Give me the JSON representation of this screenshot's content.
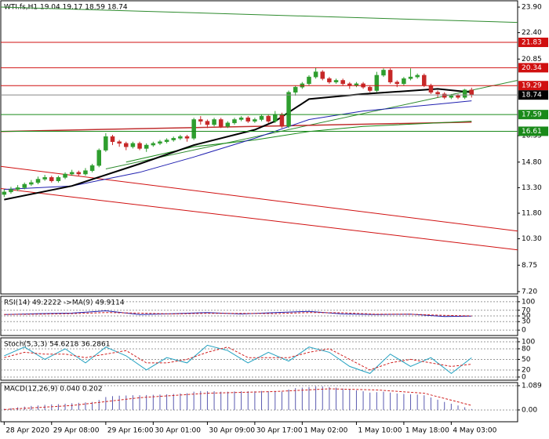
{
  "chart_data": [
    {
      "type": "candlestick",
      "title": "WTI.fs,H1  19.04 19.17 18.59 18.74",
      "xlim": [
        -0.5,
        75.8
      ],
      "ylim": [
        7.06,
        24.27
      ],
      "yticks": [
        {
          "value": 23.9,
          "label": "23.90"
        },
        {
          "value": 22.4,
          "label": "22.40"
        },
        20.85,
        16.35,
        {
          "value": 14.8,
          "label": "14.80"
        },
        {
          "value": 13.3,
          "label": "13.30"
        },
        {
          "value": 11.8,
          "label": "11.80"
        },
        {
          "value": 10.3,
          "label": "10.30"
        },
        8.75,
        {
          "value": 7.2,
          "label": "7.20"
        }
      ],
      "up_color": "#2e9e2e",
      "down_color": "#c62828",
      "open": [
        12.9,
        13.05,
        13.2,
        13.3,
        13.5,
        13.6,
        13.8,
        13.9,
        13.7,
        13.9,
        14.1,
        14.2,
        14.1,
        14.3,
        14.6,
        15.5,
        16.3,
        16.0,
        15.9,
        15.7,
        15.9,
        15.6,
        15.8,
        15.9,
        16.0,
        16.1,
        16.2,
        16.3,
        16.2,
        17.3,
        17.2,
        17.0,
        17.3,
        16.9,
        17.1,
        17.3,
        17.4,
        17.2,
        17.3,
        17.5,
        17.2,
        17.6,
        16.9,
        18.9,
        19.2,
        19.4,
        19.8,
        20.1,
        19.7,
        19.5,
        19.6,
        19.4,
        19.3,
        19.4,
        19.2,
        19.0,
        19.9,
        20.2,
        19.5,
        19.4,
        19.7,
        19.8,
        19.9,
        19.3,
        18.9,
        18.8,
        18.6,
        18.7,
        18.6,
        19.04
      ],
      "high": [
        13.2,
        13.35,
        13.45,
        13.6,
        13.75,
        13.95,
        14.05,
        14.0,
        14.0,
        14.2,
        14.35,
        14.3,
        14.45,
        14.7,
        15.6,
        16.5,
        16.4,
        16.1,
        16.0,
        16.0,
        16.0,
        15.9,
        16.0,
        16.1,
        16.2,
        16.3,
        16.4,
        16.4,
        17.4,
        17.5,
        17.3,
        17.4,
        17.4,
        17.2,
        17.4,
        17.5,
        17.5,
        17.4,
        17.6,
        17.6,
        17.8,
        17.7,
        19.0,
        19.3,
        19.5,
        19.9,
        20.34,
        20.2,
        19.8,
        19.7,
        19.7,
        19.5,
        19.5,
        19.5,
        19.3,
        20.1,
        20.3,
        20.3,
        19.6,
        19.8,
        20.3,
        20.0,
        20.0,
        19.4,
        19.0,
        18.9,
        18.8,
        18.8,
        19.1,
        19.17
      ],
      "low": [
        12.75,
        12.95,
        13.1,
        13.2,
        13.4,
        13.5,
        13.7,
        13.6,
        13.6,
        13.8,
        14.0,
        14.0,
        14.0,
        14.2,
        14.5,
        15.4,
        15.8,
        15.7,
        15.5,
        15.6,
        15.5,
        15.4,
        15.7,
        15.8,
        15.9,
        16.0,
        16.1,
        16.0,
        16.1,
        17.0,
        16.8,
        16.9,
        16.8,
        16.8,
        17.0,
        17.2,
        17.1,
        17.1,
        17.2,
        17.1,
        17.1,
        16.8,
        16.8,
        18.7,
        19.1,
        19.3,
        19.7,
        19.6,
        19.4,
        19.4,
        19.3,
        19.1,
        19.2,
        19.1,
        18.9,
        18.9,
        19.8,
        19.4,
        19.2,
        19.3,
        19.6,
        19.7,
        19.2,
        18.8,
        18.6,
        18.5,
        18.5,
        18.5,
        18.5,
        18.59
      ],
      "close": [
        13.05,
        13.2,
        13.3,
        13.5,
        13.6,
        13.8,
        13.9,
        13.7,
        13.9,
        14.1,
        14.2,
        14.1,
        14.3,
        14.6,
        15.5,
        16.3,
        16.0,
        15.9,
        15.7,
        15.9,
        15.6,
        15.8,
        15.9,
        16.0,
        16.1,
        16.2,
        16.3,
        16.2,
        17.3,
        17.2,
        17.0,
        17.3,
        16.9,
        17.1,
        17.3,
        17.4,
        17.2,
        17.3,
        17.5,
        17.2,
        17.6,
        16.9,
        18.9,
        19.2,
        19.4,
        19.8,
        20.1,
        19.7,
        19.5,
        19.6,
        19.4,
        19.3,
        19.4,
        19.2,
        19.0,
        19.9,
        20.2,
        19.5,
        19.4,
        19.7,
        19.8,
        19.9,
        19.3,
        18.9,
        18.8,
        18.6,
        18.7,
        18.6,
        19.04,
        18.74
      ],
      "lines": [
        {
          "color": "#2e8b2e",
          "width": 1,
          "x": [
            -0.5,
            75.8
          ],
          "values": [
            23.9,
            23.0
          ]
        },
        {
          "color": "#2e8b2e",
          "width": 1,
          "x": [
            15,
            75.8
          ],
          "values": [
            14.4,
            19.6
          ]
        },
        {
          "color": "#d01010",
          "width": 1,
          "x": [
            -0.5,
            75.8
          ],
          "values": [
            14.55,
            10.75
          ]
        },
        {
          "color": "#d01010",
          "width": 1,
          "x": [
            -0.5,
            75.8
          ],
          "values": [
            13.25,
            9.65
          ]
        },
        {
          "color": "#c03030",
          "width": 1.5,
          "x": [
            -0.5,
            69
          ],
          "values": [
            16.6,
            17.15
          ]
        },
        {
          "color": "#1a8a1a",
          "width": 1,
          "x": [
            18,
            28,
            37,
            45,
            53,
            64,
            69
          ],
          "values": [
            14.8,
            15.7,
            16.1,
            16.6,
            16.9,
            17.1,
            17.2
          ]
        },
        {
          "color": "#2020b0",
          "width": 1,
          "x": [
            0,
            10,
            20,
            28,
            37,
            45,
            53,
            64,
            69
          ],
          "values": [
            13.2,
            13.4,
            14.2,
            15.1,
            16.2,
            17.3,
            17.8,
            18.2,
            18.4
          ]
        },
        {
          "color": "#000000",
          "width": 2,
          "x": [
            0,
            10,
            20,
            28,
            37,
            40,
            45,
            53,
            64,
            69
          ],
          "values": [
            12.6,
            13.4,
            14.7,
            15.8,
            16.7,
            17.2,
            18.5,
            18.8,
            19.1,
            18.9
          ]
        }
      ],
      "levels": [
        {
          "value": 21.83,
          "color": "#d01010"
        },
        {
          "value": 20.34,
          "color": "#d01010"
        },
        {
          "value": 19.29,
          "color": "#d01010"
        },
        {
          "value": 18.74,
          "color": "#000000"
        },
        {
          "value": 17.59,
          "color": "#1a8a1a"
        },
        {
          "value": 16.61,
          "color": "#1a8a1a"
        }
      ]
    },
    {
      "type": "line",
      "title": "RSI(14) 49.2222  ->MA(9) 49.9114",
      "ylim": [
        -19,
        119
      ],
      "yticks": [
        100,
        70,
        50,
        30,
        0
      ],
      "series": [
        {
          "color": "#2020b0",
          "x": [
            0,
            5,
            10,
            15,
            20,
            25,
            30,
            35,
            40,
            45,
            50,
            55,
            60,
            65,
            69
          ],
          "values": [
            55,
            58,
            60,
            68,
            55,
            58,
            62,
            57,
            62,
            66,
            57,
            55,
            56,
            48,
            49.22
          ]
        },
        {
          "color": "#d02020",
          "dash": true,
          "x": [
            0,
            5,
            10,
            15,
            20,
            25,
            30,
            35,
            40,
            45,
            50,
            55,
            60,
            65,
            69
          ],
          "values": [
            55,
            56,
            58,
            62,
            60,
            57,
            59,
            59,
            58,
            62,
            61,
            56,
            56,
            52,
            49.91
          ]
        }
      ]
    },
    {
      "type": "line",
      "title": "Stoch(5,3,3) 54.6218 36.2861",
      "ylim": [
        -9,
        111
      ],
      "yticks": [
        100,
        80,
        50,
        20,
        0
      ],
      "series": [
        {
          "color": "#20a0c0",
          "x": [
            0,
            3,
            6,
            9,
            12,
            15,
            18,
            21,
            24,
            27,
            30,
            33,
            36,
            39,
            42,
            45,
            48,
            51,
            54,
            57,
            60,
            63,
            66,
            69
          ],
          "values": [
            60,
            85,
            50,
            80,
            40,
            85,
            60,
            20,
            55,
            40,
            90,
            75,
            40,
            70,
            45,
            85,
            70,
            30,
            10,
            65,
            30,
            55,
            10,
            54.62
          ]
        },
        {
          "color": "#d02020",
          "dash": true,
          "x": [
            0,
            3,
            6,
            9,
            12,
            15,
            18,
            21,
            24,
            27,
            30,
            33,
            36,
            39,
            42,
            45,
            48,
            51,
            54,
            57,
            60,
            63,
            66,
            69
          ],
          "values": [
            55,
            70,
            65,
            65,
            55,
            65,
            75,
            40,
            40,
            50,
            70,
            85,
            55,
            55,
            55,
            70,
            80,
            50,
            20,
            40,
            50,
            40,
            30,
            36.29
          ]
        }
      ]
    },
    {
      "type": "histogram_line",
      "title": "MACD(12,26,9) 0.040 0.202",
      "ylim": [
        -0.53,
        1.23
      ],
      "yticks": [
        1.089,
        {
          "value": 0,
          "label": "0.00"
        }
      ],
      "color": "#5a5ab0",
      "values": [
        0.05,
        0.08,
        0.12,
        0.15,
        0.18,
        0.2,
        0.23,
        0.25,
        0.26,
        0.28,
        0.3,
        0.32,
        0.34,
        0.36,
        0.45,
        0.58,
        0.62,
        0.64,
        0.65,
        0.66,
        0.66,
        0.67,
        0.68,
        0.69,
        0.7,
        0.72,
        0.74,
        0.75,
        0.82,
        0.85,
        0.84,
        0.84,
        0.82,
        0.82,
        0.83,
        0.84,
        0.84,
        0.84,
        0.85,
        0.84,
        0.85,
        0.82,
        0.92,
        0.98,
        1.0,
        1.03,
        1.06,
        1.06,
        1.03,
        1.0,
        0.96,
        0.92,
        0.88,
        0.84,
        0.78,
        0.8,
        0.82,
        0.78,
        0.74,
        0.72,
        0.7,
        0.69,
        0.66,
        0.56,
        0.46,
        0.36,
        0.28,
        0.2,
        0.12,
        0.04
      ],
      "series": [
        {
          "color": "#d02020",
          "dash": true,
          "x": [
            0,
            10,
            20,
            30,
            40,
            48,
            55,
            62,
            69
          ],
          "values": [
            0.02,
            0.2,
            0.55,
            0.75,
            0.83,
            0.95,
            0.9,
            0.75,
            0.202
          ]
        }
      ],
      "xticks": [
        {
          "value": 0,
          "label": "28 Apr 2020"
        },
        {
          "value": 7,
          "label": "29 Apr 08:00"
        },
        {
          "value": 15,
          "label": "29 Apr 16:00"
        },
        {
          "value": 22,
          "label": "30 Apr 01:00"
        },
        {
          "value": 30,
          "label": "30 Apr 09:00"
        },
        {
          "value": 37,
          "label": "30 Apr 17:00"
        },
        {
          "value": 44,
          "label": "1 May 02:00"
        },
        {
          "value": 52,
          "label": "1 May 10:00"
        },
        {
          "value": 59,
          "label": "1 May 18:00"
        },
        {
          "value": 66,
          "label": "4 May 03:00"
        }
      ]
    }
  ]
}
